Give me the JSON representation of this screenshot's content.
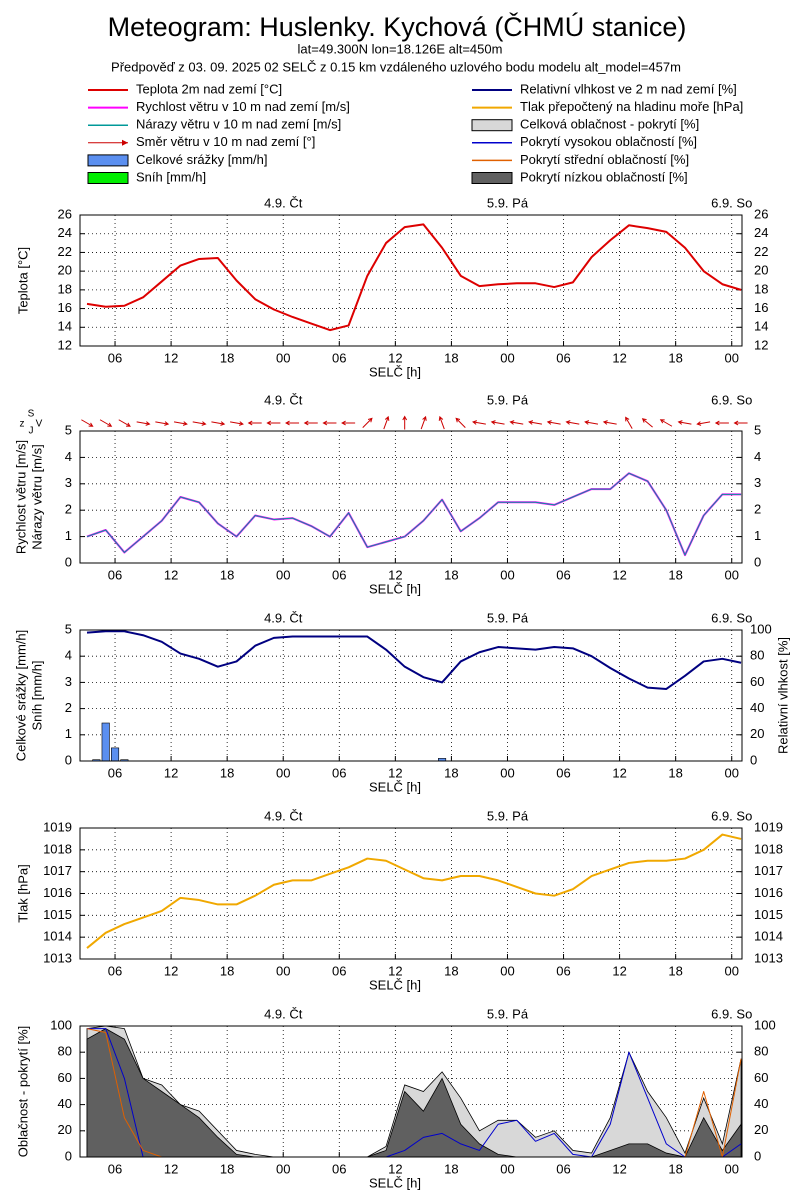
{
  "header": {
    "title": "Meteogram: Huslenky. Kychová (ČHMÚ stanice)",
    "location": "lat=49.300N lon=18.126E alt=450m",
    "forecast": "Předpověď z 03. 09. 2025 02 SELČ z 0.15 km vzdáleného uzlového bodu modelu alt_model=457m"
  },
  "chart_data": [
    {
      "type": "line",
      "ylabel": [
        "Teplota [°C]"
      ],
      "xlabel": "SELČ [h]",
      "grid": true,
      "mirror_ticks": true,
      "xlim": [
        2.25,
        73.1
      ],
      "ylim": [
        12,
        26
      ],
      "yticks": [
        12,
        14,
        16,
        18,
        20,
        22,
        24,
        26
      ],
      "xticks": [
        {
          "value": 6,
          "label": "06"
        },
        {
          "value": 12,
          "label": "12"
        },
        {
          "value": 18,
          "label": "18"
        },
        {
          "value": 24,
          "label": "00"
        },
        {
          "value": 30,
          "label": "06"
        },
        {
          "value": 36,
          "label": "12"
        },
        {
          "value": 42,
          "label": "18"
        },
        {
          "value": 48,
          "label": "00"
        },
        {
          "value": 54,
          "label": "06"
        },
        {
          "value": 60,
          "label": "12"
        },
        {
          "value": 66,
          "label": "18"
        },
        {
          "value": 72,
          "label": "00"
        }
      ],
      "day_labels": [
        {
          "value": 24,
          "label": "4.9. Čt"
        },
        {
          "value": 48,
          "label": "5.9. Pá"
        },
        {
          "value": 72,
          "label": "6.9. So"
        }
      ],
      "x": [
        3,
        5,
        7,
        9,
        11,
        13,
        15,
        17,
        19,
        21,
        23,
        25,
        27,
        29,
        31,
        33,
        35,
        37,
        39,
        41,
        43,
        45,
        47,
        49,
        51,
        53,
        55,
        57,
        59,
        61,
        63,
        65,
        67,
        69,
        71,
        73
      ],
      "series": [
        {
          "name": "Teplota 2m nad zemí [°C]",
          "style": "line",
          "color": "#dd0000",
          "width": 2,
          "values": [
            16.5,
            16.2,
            16.3,
            17.2,
            18.9,
            20.6,
            21.3,
            21.4,
            19.0,
            17.0,
            15.9,
            15.1,
            14.4,
            13.7,
            14.2,
            19.5,
            23.0,
            24.7,
            25.0,
            22.5,
            19.5,
            18.4,
            18.6,
            18.7,
            18.7,
            18.3,
            18.8,
            21.5,
            23.3,
            24.9,
            24.6,
            24.2,
            22.5,
            20.0,
            18.6,
            18.0
          ]
        }
      ]
    },
    {
      "type": "line",
      "ylabel": [
        "Rychlost větru [m/s]",
        "Nárazy větru [m/s]"
      ],
      "xlabel": "SELČ [h]",
      "grid": true,
      "mirror_ticks": true,
      "compass": [
        "z",
        "S",
        "J",
        "V"
      ],
      "xlim": [
        2.25,
        73.1
      ],
      "ylim": [
        0,
        5
      ],
      "yticks": [
        0,
        1,
        2,
        3,
        4,
        5
      ],
      "xticks": [
        {
          "value": 6,
          "label": "06"
        },
        {
          "value": 12,
          "label": "12"
        },
        {
          "value": 18,
          "label": "18"
        },
        {
          "value": 24,
          "label": "00"
        },
        {
          "value": 30,
          "label": "06"
        },
        {
          "value": 36,
          "label": "12"
        },
        {
          "value": 42,
          "label": "18"
        },
        {
          "value": 48,
          "label": "00"
        },
        {
          "value": 54,
          "label": "06"
        },
        {
          "value": 60,
          "label": "12"
        },
        {
          "value": 66,
          "label": "18"
        },
        {
          "value": 72,
          "label": "00"
        }
      ],
      "day_labels": [
        {
          "value": 24,
          "label": "4.9. Čt"
        },
        {
          "value": 48,
          "label": "5.9. Pá"
        },
        {
          "value": 72,
          "label": "6.9. So"
        }
      ],
      "x": [
        3,
        5,
        7,
        9,
        11,
        13,
        15,
        17,
        19,
        21,
        23,
        25,
        27,
        29,
        31,
        33,
        35,
        37,
        39,
        41,
        43,
        45,
        47,
        49,
        51,
        53,
        55,
        57,
        59,
        61,
        63,
        65,
        67,
        69,
        71,
        73
      ],
      "series": [
        {
          "name": "Rychlost větru v 10 m nad zemí [m/s]",
          "style": "line",
          "color": "#ff00ff",
          "width": 2,
          "values": [
            1.0,
            1.25,
            0.4,
            1.0,
            1.6,
            2.5,
            2.3,
            1.5,
            1.0,
            1.8,
            1.65,
            1.7,
            1.4,
            1.0,
            1.9,
            0.6,
            0.8,
            1.0,
            1.6,
            2.4,
            1.2,
            1.7,
            2.3,
            2.3,
            2.3,
            2.2,
            2.5,
            2.8,
            2.8,
            3.4,
            3.1,
            2.0,
            0.3,
            1.8,
            2.6,
            2.6
          ]
        },
        {
          "name": "Nárazy větru v 10 m nad zemí [m/s]",
          "style": "line",
          "color": "#009999",
          "width": 1,
          "values": [
            1.0,
            1.25,
            0.4,
            1.0,
            1.6,
            2.5,
            2.3,
            1.5,
            1.0,
            1.8,
            1.65,
            1.7,
            1.4,
            1.0,
            1.9,
            0.6,
            0.8,
            1.0,
            1.6,
            2.4,
            1.2,
            1.7,
            2.3,
            2.3,
            2.3,
            2.2,
            2.5,
            2.8,
            2.8,
            3.4,
            3.1,
            2.0,
            0.3,
            1.8,
            2.6,
            2.6
          ]
        },
        {
          "name": "Směr větru v 10 m nad zemí [°]",
          "style": "arrows",
          "color": "#cc0000",
          "width": 1,
          "values": [
            300,
            300,
            300,
            280,
            280,
            280,
            280,
            280,
            280,
            90,
            90,
            90,
            90,
            90,
            90,
            225,
            200,
            180,
            200,
            160,
            135,
            100,
            100,
            100,
            100,
            100,
            100,
            100,
            100,
            150,
            130,
            120,
            100,
            80,
            90,
            90
          ]
        }
      ]
    },
    {
      "type": "bar",
      "ylabel": [
        "Celkové srážky [mm/h]",
        "Sníh [mm/h]"
      ],
      "y2label": "Relativní vlhkost [%]",
      "xlabel": "SELČ [h]",
      "grid": true,
      "mirror_ticks": false,
      "xlim": [
        2.25,
        73.1
      ],
      "ylim": [
        0,
        5
      ],
      "yticks": [
        0,
        1,
        2,
        3,
        4,
        5
      ],
      "y2lim": [
        0,
        100
      ],
      "y2ticks": [
        0,
        20,
        40,
        60,
        80,
        100
      ],
      "xticks": [
        {
          "value": 6,
          "label": "06"
        },
        {
          "value": 12,
          "label": "12"
        },
        {
          "value": 18,
          "label": "18"
        },
        {
          "value": 24,
          "label": "00"
        },
        {
          "value": 30,
          "label": "06"
        },
        {
          "value": 36,
          "label": "12"
        },
        {
          "value": 42,
          "label": "18"
        },
        {
          "value": 48,
          "label": "00"
        },
        {
          "value": 54,
          "label": "06"
        },
        {
          "value": 60,
          "label": "12"
        },
        {
          "value": 66,
          "label": "18"
        },
        {
          "value": 72,
          "label": "00"
        }
      ],
      "day_labels": [
        {
          "value": 24,
          "label": "4.9. Čt"
        },
        {
          "value": 48,
          "label": "5.9. Pá"
        },
        {
          "value": 72,
          "label": "6.9. So"
        }
      ],
      "x": [
        3,
        5,
        7,
        9,
        11,
        13,
        15,
        17,
        19,
        21,
        23,
        25,
        27,
        29,
        31,
        33,
        35,
        37,
        39,
        41,
        43,
        45,
        47,
        49,
        51,
        53,
        55,
        57,
        59,
        61,
        63,
        65,
        67,
        69,
        71,
        73
      ],
      "series": [
        {
          "name": "Celkové srážky [mm/h]",
          "style": "bar",
          "color": "#5b8ff0",
          "x": [
            4,
            5,
            6,
            7,
            41
          ],
          "values": [
            0.05,
            1.45,
            0.5,
            0.05,
            0.1
          ]
        },
        {
          "name": "Sníh [mm/h]",
          "style": "bar",
          "color": "#00ee00",
          "x": [
            4,
            5,
            6,
            7,
            41
          ],
          "values": [
            0,
            0,
            0,
            0,
            0
          ]
        },
        {
          "name": "Relativní vlhkost ve 2 m nad zemí [%]",
          "style": "line",
          "axis": "y2",
          "color": "#000080",
          "width": 2,
          "values": [
            98,
            99,
            99,
            96,
            91,
            82,
            78,
            72,
            76,
            88,
            94,
            95,
            95,
            95,
            95,
            95,
            85,
            72,
            64,
            60,
            76,
            83,
            87,
            86,
            85,
            87,
            86,
            80,
            71,
            63,
            56,
            55,
            65,
            76,
            78,
            75
          ]
        }
      ]
    },
    {
      "type": "line",
      "ylabel": [
        "Tlak [hPa]"
      ],
      "xlabel": "SELČ [h]",
      "grid": true,
      "mirror_ticks": true,
      "xlim": [
        2.25,
        73.1
      ],
      "ylim": [
        1013,
        1019
      ],
      "yticks": [
        1013,
        1014,
        1015,
        1016,
        1017,
        1018,
        1019
      ],
      "xticks": [
        {
          "value": 6,
          "label": "06"
        },
        {
          "value": 12,
          "label": "12"
        },
        {
          "value": 18,
          "label": "18"
        },
        {
          "value": 24,
          "label": "00"
        },
        {
          "value": 30,
          "label": "06"
        },
        {
          "value": 36,
          "label": "12"
        },
        {
          "value": 42,
          "label": "18"
        },
        {
          "value": 48,
          "label": "00"
        },
        {
          "value": 54,
          "label": "06"
        },
        {
          "value": 60,
          "label": "12"
        },
        {
          "value": 66,
          "label": "18"
        },
        {
          "value": 72,
          "label": "00"
        }
      ],
      "day_labels": [
        {
          "value": 24,
          "label": "4.9. Čt"
        },
        {
          "value": 48,
          "label": "5.9. Pá"
        },
        {
          "value": 72,
          "label": "6.9. So"
        }
      ],
      "x": [
        3,
        5,
        7,
        9,
        11,
        13,
        15,
        17,
        19,
        21,
        23,
        25,
        27,
        29,
        31,
        33,
        35,
        37,
        39,
        41,
        43,
        45,
        47,
        49,
        51,
        53,
        55,
        57,
        59,
        61,
        63,
        65,
        67,
        69,
        71,
        73
      ],
      "series": [
        {
          "name": "Tlak přepočtený na hladinu moře [hPa]",
          "style": "line",
          "color": "#f0a800",
          "width": 2,
          "values": [
            1013.5,
            1014.2,
            1014.6,
            1014.9,
            1015.2,
            1015.8,
            1015.7,
            1015.5,
            1015.5,
            1015.9,
            1016.4,
            1016.6,
            1016.6,
            1016.9,
            1017.2,
            1017.6,
            1017.5,
            1017.1,
            1016.7,
            1016.6,
            1016.8,
            1016.8,
            1016.6,
            1016.3,
            1016.0,
            1015.9,
            1016.2,
            1016.8,
            1017.1,
            1017.4,
            1017.5,
            1017.5,
            1017.6,
            1018.0,
            1018.7,
            1018.5
          ]
        }
      ]
    },
    {
      "type": "area",
      "ylabel": [
        "Oblačnost - pokrytí [%]"
      ],
      "xlabel": "SELČ [h]",
      "grid": true,
      "mirror_ticks": true,
      "xlim": [
        2.25,
        73.1
      ],
      "ylim": [
        0,
        100
      ],
      "yticks": [
        0,
        20,
        40,
        60,
        80,
        100
      ],
      "xticks": [
        {
          "value": 6,
          "label": "06"
        },
        {
          "value": 12,
          "label": "12"
        },
        {
          "value": 18,
          "label": "18"
        },
        {
          "value": 24,
          "label": "00"
        },
        {
          "value": 30,
          "label": "06"
        },
        {
          "value": 36,
          "label": "12"
        },
        {
          "value": 42,
          "label": "18"
        },
        {
          "value": 48,
          "label": "00"
        },
        {
          "value": 54,
          "label": "06"
        },
        {
          "value": 60,
          "label": "12"
        },
        {
          "value": 66,
          "label": "18"
        },
        {
          "value": 72,
          "label": "00"
        }
      ],
      "day_labels": [
        {
          "value": 24,
          "label": "4.9. Čt"
        },
        {
          "value": 48,
          "label": "5.9. Pá"
        },
        {
          "value": 72,
          "label": "6.9. So"
        }
      ],
      "x": [
        3,
        5,
        7,
        9,
        11,
        13,
        15,
        17,
        19,
        21,
        23,
        25,
        27,
        29,
        31,
        33,
        35,
        37,
        39,
        41,
        43,
        45,
        47,
        49,
        51,
        53,
        55,
        57,
        59,
        61,
        63,
        65,
        67,
        69,
        71,
        73
      ],
      "series": [
        {
          "name": "Celková oblačnost - pokrytí [%]",
          "style": "area",
          "color": "#d8d8d8",
          "width": 1,
          "values": [
            98,
            100,
            98,
            60,
            55,
            40,
            35,
            20,
            5,
            2,
            0,
            0,
            0,
            0,
            0,
            0,
            8,
            55,
            50,
            65,
            45,
            20,
            28,
            28,
            15,
            20,
            5,
            3,
            30,
            80,
            50,
            30,
            3,
            45,
            10,
            75
          ]
        },
        {
          "name": "Pokrytí vysokou oblačností [%]",
          "style": "line",
          "color": "#0000cc",
          "width": 1,
          "values": [
            98,
            98,
            60,
            0,
            0,
            0,
            0,
            0,
            0,
            0,
            0,
            0,
            0,
            0,
            0,
            0,
            0,
            5,
            15,
            18,
            10,
            5,
            25,
            28,
            12,
            18,
            2,
            0,
            25,
            80,
            45,
            10,
            0,
            0,
            0,
            10
          ]
        },
        {
          "name": "Pokrytí střední oblačností [%]",
          "style": "line",
          "color": "#e06000",
          "width": 1,
          "values": [
            98,
            95,
            30,
            5,
            0,
            0,
            0,
            0,
            0,
            0,
            0,
            0,
            0,
            0,
            0,
            0,
            0,
            0,
            0,
            0,
            0,
            0,
            0,
            0,
            0,
            0,
            0,
            0,
            0,
            0,
            0,
            0,
            0,
            50,
            0,
            75
          ]
        },
        {
          "name": "Pokrytí nízkou oblačností [%]",
          "style": "area",
          "color": "#606060",
          "width": 1,
          "values": [
            90,
            98,
            90,
            60,
            50,
            40,
            30,
            15,
            2,
            0,
            0,
            0,
            0,
            0,
            0,
            0,
            5,
            50,
            35,
            60,
            25,
            10,
            2,
            0,
            0,
            0,
            0,
            0,
            5,
            10,
            10,
            3,
            0,
            30,
            5,
            25
          ]
        }
      ]
    }
  ]
}
